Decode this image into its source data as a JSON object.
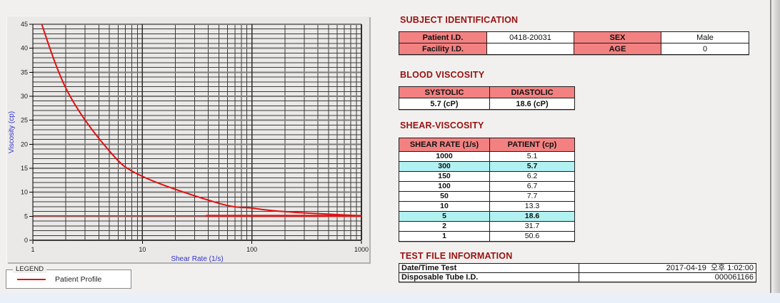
{
  "chart_data": {
    "type": "line",
    "title": "",
    "xlabel": "Shear Rate (1/s)",
    "ylabel": "Viscosity (cp)",
    "x_scale": "log",
    "xlim": [
      1,
      1000
    ],
    "ylim": [
      0,
      45
    ],
    "y_major_step": 5,
    "y_minor_step": 1,
    "x_ticks": [
      1,
      10,
      100,
      1000
    ],
    "y_ticks": [
      0,
      5,
      10,
      15,
      20,
      25,
      30,
      35,
      40,
      45
    ],
    "grid": {
      "minor_color": "#3a3a3a",
      "major_color": "#7a7a7a"
    },
    "axis_label_color": "#3333cc",
    "legend_position": "below-left",
    "series": [
      {
        "name": "Patient Profile",
        "color": "#e11212",
        "x": [
          1,
          2,
          5,
          10,
          50,
          100,
          150,
          300,
          1000
        ],
        "y": [
          50.6,
          31.7,
          18.6,
          13.3,
          7.7,
          6.7,
          6.2,
          5.7,
          5.1
        ]
      }
    ],
    "baseline": {
      "value": 5.1,
      "span": [
        1,
        1000
      ],
      "thick_span": [
        38,
        1000
      ],
      "color": "#e11212"
    }
  },
  "legend": {
    "title": "LEGEND",
    "entries": [
      {
        "label": "Patient Profile",
        "color": "#e11212"
      }
    ]
  },
  "sections": {
    "subject": {
      "title": "SUBJECT IDENTIFICATION",
      "rows": [
        {
          "label1": "Patient I.D.",
          "value1": "0418-20031",
          "label2": "SEX",
          "value2": "Male"
        },
        {
          "label1": "Facility I.D.",
          "value1": "",
          "label2": "AGE",
          "value2": "0"
        }
      ]
    },
    "blood": {
      "title": "BLOOD VISCOSITY",
      "headers": [
        "SYSTOLIC",
        "DIASTOLIC"
      ],
      "values": [
        "5.7 (cP)",
        "18.6 (cP)"
      ]
    },
    "shear": {
      "title": "SHEAR-VISCOSITY",
      "headers": [
        "SHEAR RATE (1/s)",
        "PATIENT (cp)"
      ],
      "rows": [
        {
          "rate": "1000",
          "value": "5.1",
          "highlight": false
        },
        {
          "rate": "300",
          "value": "5.7",
          "highlight": true
        },
        {
          "rate": "150",
          "value": "6.2",
          "highlight": false
        },
        {
          "rate": "100",
          "value": "6.7",
          "highlight": false
        },
        {
          "rate": "50",
          "value": "7.7",
          "highlight": false
        },
        {
          "rate": "10",
          "value": "13.3",
          "highlight": false
        },
        {
          "rate": "5",
          "value": "18.6",
          "highlight": true
        },
        {
          "rate": "2",
          "value": "31.7",
          "highlight": false
        },
        {
          "rate": "1",
          "value": "50.6",
          "highlight": false
        }
      ],
      "highlight_color": "#b2f1f1"
    },
    "testfile": {
      "title": "TEST FILE INFORMATION",
      "rows": [
        {
          "label": "Date/Time Test",
          "value": "2017-04-19  오후 1:02:00"
        },
        {
          "label": "Disposable Tube I.D.",
          "value": "000061166"
        }
      ]
    }
  },
  "colors": {
    "table_header_pink": "#f38181",
    "section_title_red": "#981111",
    "series_red": "#e11212",
    "axis_label_blue": "#3333cc"
  }
}
